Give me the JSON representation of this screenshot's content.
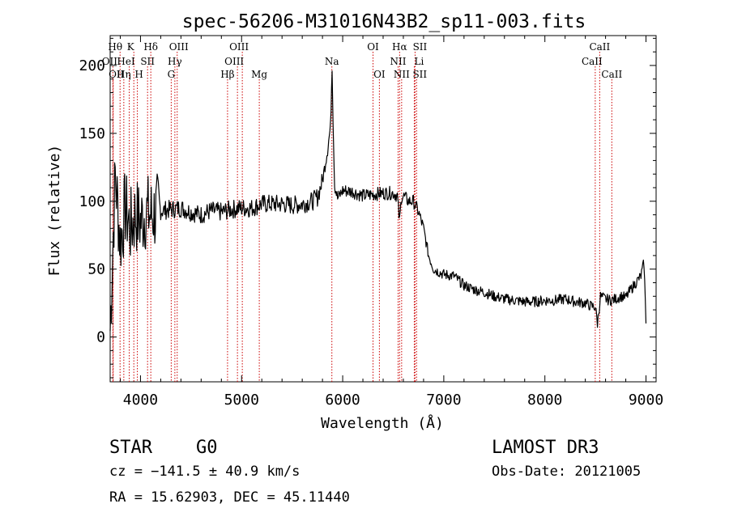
{
  "chart_data": {
    "type": "line",
    "title": "spec-56206-M31016N43B2_sp11-003.fits",
    "xlabel": "Wavelength (Å)",
    "ylabel": "Flux (relative)",
    "xlim": [
      3700,
      9100
    ],
    "ylim": [
      -33,
      222
    ],
    "xticks": [
      4000,
      5000,
      6000,
      7000,
      8000,
      9000
    ],
    "yticks": [
      0,
      50,
      100,
      150,
      200
    ],
    "grid": false,
    "series": [
      {
        "name": "spectrum",
        "x": [
          3700,
          3750,
          3800,
          3850,
          3900,
          3950,
          4000,
          4050,
          4100,
          4200,
          4300,
          4400,
          4500,
          4600,
          4700,
          4800,
          4900,
          5000,
          5100,
          5200,
          5300,
          5400,
          5500,
          5600,
          5700,
          5750,
          5800,
          5850,
          5880,
          5895,
          5905,
          5920,
          5950,
          6000,
          6100,
          6200,
          6300,
          6400,
          6500,
          6540,
          6563,
          6580,
          6600,
          6650,
          6700,
          6750,
          6800,
          6850,
          6900,
          7000,
          7100,
          7200,
          7300,
          7400,
          7500,
          7600,
          7700,
          7800,
          7900,
          8000,
          8100,
          8200,
          8300,
          8400,
          8450,
          8500,
          8520,
          8550,
          8600,
          8650,
          8700,
          8750,
          8800,
          8850,
          8900,
          8950,
          8980,
          9000
        ],
        "y": [
          5,
          120,
          70,
          95,
          80,
          90,
          85,
          92,
          90,
          93,
          94,
          95,
          92,
          90,
          93,
          92,
          94,
          95,
          95,
          98,
          98,
          98,
          97,
          98,
          100,
          103,
          115,
          138,
          155,
          200,
          160,
          112,
          102,
          108,
          107,
          104,
          105,
          106,
          106,
          104,
          85,
          103,
          104,
          100,
          100,
          92,
          80,
          60,
          50,
          46,
          45,
          38,
          35,
          33,
          30,
          28,
          27,
          26,
          26,
          27,
          27,
          28,
          26,
          25,
          23,
          22,
          10,
          30,
          28,
          27,
          28,
          30,
          29,
          35,
          40,
          45,
          55,
          10
        ]
      }
    ],
    "lines": [
      {
        "name": "OII",
        "wave": 3727,
        "row": 1,
        "label_dx": -4
      },
      {
        "name": "OII",
        "wave": 3730,
        "row": 2,
        "label_dx": 4
      },
      {
        "name": "Hθ",
        "wave": 3798,
        "row": 0,
        "label_dx": -6
      },
      {
        "name": "Hη",
        "wave": 3835,
        "row": 2,
        "label_dx": 0
      },
      {
        "name": "HeI",
        "wave": 3889,
        "row": 1,
        "label_dx": -4
      },
      {
        "name": "K",
        "wave": 3934,
        "row": 0,
        "label_dx": -4
      },
      {
        "name": "H",
        "wave": 3969,
        "row": 2,
        "label_dx": 2
      },
      {
        "name": "SII",
        "wave": 4070,
        "row": 1,
        "label_dx": 0
      },
      {
        "name": "Hδ",
        "wave": 4102,
        "row": 0,
        "label_dx": 0
      },
      {
        "name": "G",
        "wave": 4304,
        "row": 2,
        "label_dx": 0
      },
      {
        "name": "Hγ",
        "wave": 4340,
        "row": 1,
        "label_dx": 0
      },
      {
        "name": "OIII",
        "wave": 4363,
        "row": 0,
        "label_dx": 2
      },
      {
        "name": "Hβ",
        "wave": 4861,
        "row": 2,
        "label_dx": 0
      },
      {
        "name": "OIII",
        "wave": 4959,
        "row": 1,
        "label_dx": -4
      },
      {
        "name": "OIII",
        "wave": 5007,
        "row": 0,
        "label_dx": -4
      },
      {
        "name": "Mg",
        "wave": 5175,
        "row": 2,
        "label_dx": 0
      },
      {
        "name": "Na",
        "wave": 5893,
        "row": 1,
        "label_dx": 0
      },
      {
        "name": "OI",
        "wave": 6300,
        "row": 0,
        "label_dx": 0
      },
      {
        "name": "OI",
        "wave": 6363,
        "row": 2,
        "label_dx": 0
      },
      {
        "name": "NII",
        "wave": 6548,
        "row": 1,
        "label_dx": 0
      },
      {
        "name": "Hα",
        "wave": 6563,
        "row": 0,
        "label_dx": 0
      },
      {
        "name": "NII",
        "wave": 6583,
        "row": 2,
        "label_dx": 0
      },
      {
        "name": "SII",
        "wave": 6716,
        "row": 0,
        "label_dx": 6
      },
      {
        "name": "Li",
        "wave": 6708,
        "row": 1,
        "label_dx": 6
      },
      {
        "name": "SII",
        "wave": 6731,
        "row": 2,
        "label_dx": 4
      },
      {
        "name": "CaII",
        "wave": 8498,
        "row": 1,
        "label_dx": -4
      },
      {
        "name": "CaII",
        "wave": 8542,
        "row": 0,
        "label_dx": 0
      },
      {
        "name": "CaII",
        "wave": 8662,
        "row": 2,
        "label_dx": 0
      }
    ]
  },
  "info": {
    "object_class": "STAR",
    "subclass": "G0",
    "survey": "LAMOST DR3",
    "cz": "cz = −141.5 ± 40.9 km/s",
    "obs_date": "Obs-Date: 20121005",
    "coords": "RA =  15.62903, DEC =  45.11440"
  }
}
